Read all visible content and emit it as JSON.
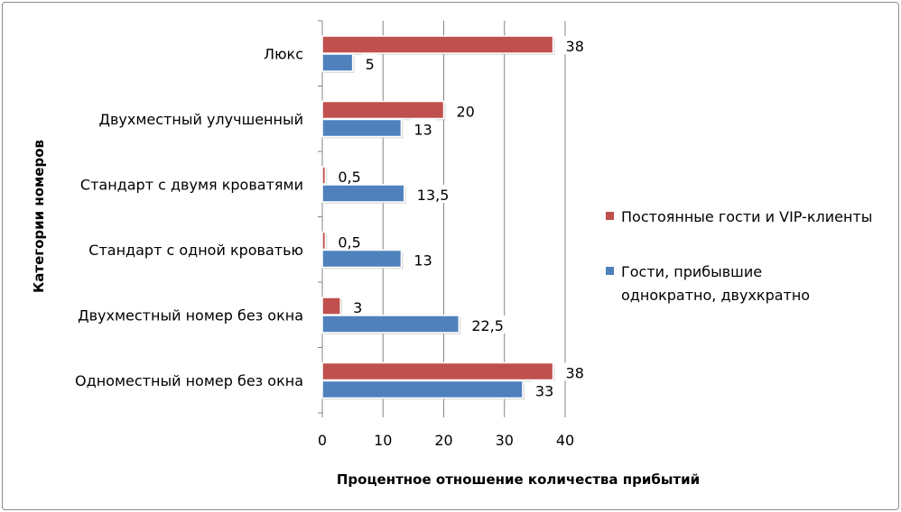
{
  "chart_data": {
    "type": "bar",
    "orientation": "horizontal",
    "categories": [
      "Люкс",
      "Двухместный улучшенный",
      "Стандарт с двумя кроватями",
      "Стандарт с одной кроватью",
      "Двухместный номер без окна",
      "Одноместный номер без окна"
    ],
    "series": [
      {
        "name": "Постоянные гости и VIP-клиенты",
        "color": "#c0504d",
        "values": [
          38,
          20,
          0.5,
          0.5,
          3,
          38
        ],
        "labels": [
          "38",
          "20",
          "0,5",
          "0,5",
          "3",
          "38"
        ]
      },
      {
        "name": "Гости, прибывшие однократно, двухкратно",
        "name_lines": [
          "Гости, прибывшие",
          "однократно, двухкратно"
        ],
        "color": "#4f81bd",
        "values": [
          5,
          13,
          13.5,
          13,
          22.5,
          33
        ],
        "labels": [
          "5",
          "13",
          "13,5",
          "13",
          "22,5",
          "33"
        ]
      }
    ],
    "xlabel": "Процентное отношение количества прибытий",
    "ylabel": "Категории номеров",
    "xlim": [
      0,
      40
    ],
    "xticks": [
      "0",
      "10",
      "20",
      "30",
      "40"
    ],
    "grid": true,
    "legend": "right"
  }
}
